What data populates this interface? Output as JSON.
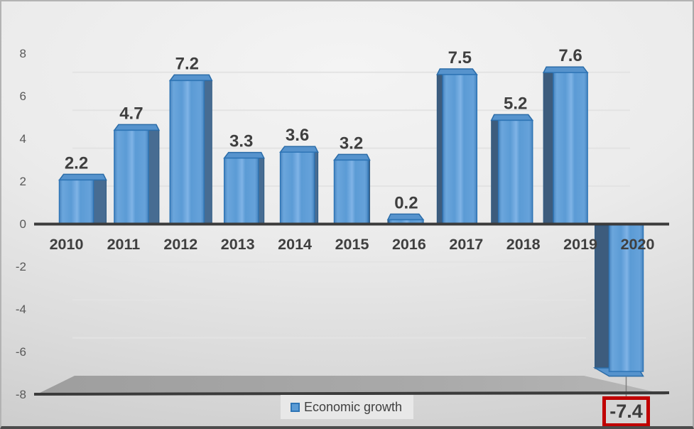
{
  "chart_data": {
    "type": "bar",
    "style": "3d-perspective-column",
    "title": "",
    "xlabel": "",
    "ylabel": "",
    "categories": [
      "2010",
      "2011",
      "2012",
      "2013",
      "2014",
      "2015",
      "2016",
      "2017",
      "2018",
      "2019",
      "2020"
    ],
    "series": [
      {
        "name": "Economic growth",
        "values": [
          2.2,
          4.7,
          7.2,
          3.3,
          3.6,
          3.2,
          0.2,
          7.5,
          5.2,
          7.6,
          -7.4
        ]
      }
    ],
    "data_labels": [
      "2.2",
      "4.7",
      "7.2",
      "3.3",
      "3.6",
      "3.2",
      "0.2",
      "7.5",
      "5.2",
      "7.6",
      "-7.4"
    ],
    "ylim": [
      -8,
      8
    ],
    "y_ticks": [
      "8",
      "6",
      "4",
      "2",
      "0",
      "-2",
      "-4",
      "-6",
      "-8"
    ],
    "y_tick_values": [
      8,
      6,
      4,
      2,
      0,
      -2,
      -4,
      -6,
      -8
    ],
    "grid": true,
    "legend": {
      "position": "bottom",
      "label": "Economic growth",
      "marker_color": "#5B9BD5"
    },
    "highlight": {
      "category": "2020",
      "label": "-7.4",
      "box_color": "#C00000"
    },
    "colors": {
      "bar": "#5B9BD5",
      "bar_border": "#2E75B6",
      "bar_side_left_group": "#476C92",
      "bar_side_right_group": "#3D5C7D",
      "axis_line": "#3B3B3B",
      "floor": "#A6A6A6",
      "gridline": "#E3E3E3",
      "tick_text": "#595959",
      "label_text": "#3F3F3F",
      "legend_bg": "#E8E8E8",
      "background": "#D9D9D9"
    }
  }
}
